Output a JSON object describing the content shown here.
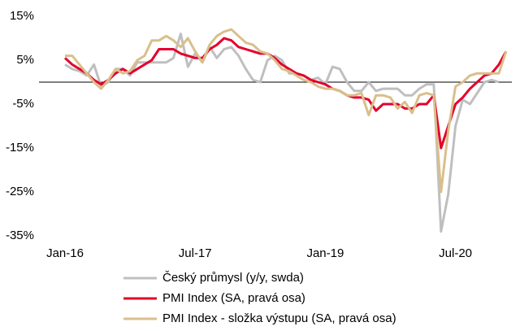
{
  "chart_data": {
    "type": "line",
    "categories": [
      "Jan-16",
      null,
      null,
      null,
      null,
      null,
      null,
      null,
      null,
      null,
      null,
      null,
      null,
      null,
      null,
      null,
      null,
      null,
      "Jul-17",
      null,
      null,
      null,
      null,
      null,
      null,
      null,
      null,
      null,
      null,
      null,
      null,
      null,
      null,
      null,
      null,
      null,
      "Jan-19",
      null,
      null,
      null,
      null,
      null,
      null,
      null,
      null,
      null,
      null,
      null,
      null,
      null,
      null,
      null,
      null,
      null,
      "Jul-20",
      null,
      null,
      null,
      null,
      null,
      null,
      null
    ],
    "ylim": [
      -35,
      15
    ],
    "yticks": [
      {
        "value": 15,
        "label": "15%"
      },
      {
        "value": 5,
        "label": "5%"
      },
      {
        "value": -5,
        "label": "-5%"
      },
      {
        "value": -15,
        "label": "-15%"
      },
      {
        "value": -25,
        "label": "-25%"
      },
      {
        "value": -35,
        "label": "-35%"
      }
    ],
    "series": [
      {
        "name": "Český průmysl (y/y, swda)",
        "color": "#bfbfbf",
        "values": [
          4,
          3,
          2.5,
          1.5,
          4,
          -1,
          0,
          3,
          3,
          1.5,
          4.5,
          4.5,
          4.5,
          4.5,
          4.5,
          5.5,
          11,
          3.5,
          6.5,
          4.5,
          8,
          5.5,
          7.5,
          8,
          6,
          3,
          0.5,
          0,
          5,
          6,
          5,
          2,
          2,
          1.5,
          0.5,
          1,
          -0.5,
          3.5,
          3,
          0,
          -2,
          -2,
          0,
          -2,
          -1.5,
          -1.5,
          -1.5,
          -3,
          -3,
          -1.5,
          -0.5,
          -0.5,
          -34,
          -25.5,
          -10,
          -4,
          -5,
          -2.5,
          0,
          0.5,
          0,
          null
        ]
      },
      {
        "name": "PMI Index (SA, pravá osa)",
        "color": "#e4002b",
        "values": [
          5.5,
          4,
          3,
          2,
          0.5,
          -0.5,
          0.5,
          2,
          3,
          2,
          3,
          4,
          5,
          7.5,
          7.5,
          7.5,
          6.5,
          6,
          5.5,
          5.5,
          7.5,
          8.5,
          10,
          9.5,
          8,
          7.5,
          7,
          6.5,
          6.5,
          5.5,
          4,
          3,
          2,
          1.5,
          0.5,
          0,
          -0.5,
          -1.5,
          -2,
          -3,
          -3.5,
          -3.5,
          -4,
          -6.5,
          -5,
          -5,
          -5,
          -6,
          -6,
          -5,
          -5,
          -3,
          -15,
          -10,
          -5,
          -3.5,
          -1.5,
          0,
          1.5,
          2,
          4,
          7
        ]
      },
      {
        "name": "PMI Index - složka výstupu (SA, pravá osa)",
        "color": "#d9bf8c",
        "values": [
          6,
          6,
          4,
          2,
          0,
          -1.5,
          0.5,
          3,
          2,
          2.5,
          5,
          6,
          9.5,
          9.5,
          10.5,
          9.5,
          8,
          10,
          7,
          4.5,
          8.5,
          10.5,
          11.5,
          12,
          10.5,
          9,
          8.5,
          7,
          6.5,
          5,
          3,
          2.5,
          1.5,
          0.5,
          0,
          -1,
          -1.5,
          -1.5,
          -2,
          -3,
          -3,
          -2.5,
          -7.5,
          -3,
          -3,
          -3.5,
          -6,
          -4.5,
          -7,
          -3,
          -2.5,
          -3,
          -25,
          -11,
          -1,
          0,
          1.5,
          2,
          2,
          2,
          2,
          7
        ]
      }
    ]
  }
}
